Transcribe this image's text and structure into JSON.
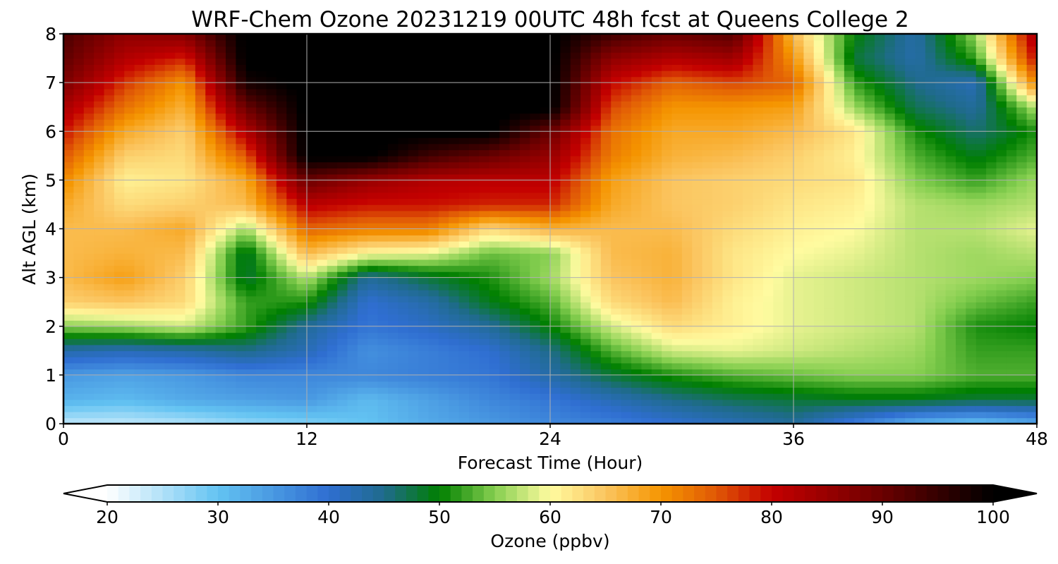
{
  "chart_data": {
    "type": "heatmap",
    "title": "WRF-Chem Ozone  20231219 00UTC 48h fcst at Queens College 2",
    "xlabel": "Forecast Time (Hour)",
    "ylabel": "Alt AGL (km)",
    "xlim": [
      0,
      48
    ],
    "ylim": [
      0,
      8
    ],
    "xticks": [
      0,
      12,
      24,
      36,
      48
    ],
    "yticks": [
      0,
      1,
      2,
      3,
      4,
      5,
      6,
      7,
      8
    ],
    "grid": true,
    "x": [
      0,
      3,
      6,
      9,
      12,
      15,
      18,
      21,
      24,
      27,
      30,
      33,
      36,
      39,
      42,
      45,
      48
    ],
    "y": [
      0,
      0.5,
      1,
      1.5,
      2,
      2.5,
      3,
      3.5,
      4,
      4.5,
      5,
      5.5,
      6,
      6.5,
      7,
      7.5,
      8
    ],
    "z_units": "ppbv",
    "z": [
      [
        24,
        24,
        25,
        27,
        28,
        30,
        33,
        35,
        37,
        38,
        40,
        42,
        44,
        38,
        32,
        30,
        33
      ],
      [
        32,
        31,
        33,
        34,
        35,
        31,
        34,
        37,
        39,
        42,
        45,
        47,
        48,
        49,
        49,
        48,
        48
      ],
      [
        35,
        34,
        35,
        37,
        37,
        37,
        38,
        39,
        43,
        48,
        51,
        53,
        54,
        55,
        55,
        53,
        53
      ],
      [
        43,
        42,
        43,
        45,
        42,
        36,
        38,
        40,
        45,
        53,
        58,
        59,
        58,
        57,
        56,
        52,
        52
      ],
      [
        55,
        56,
        58,
        52,
        44,
        39,
        41,
        44,
        50,
        58,
        63,
        61,
        59,
        58,
        57,
        51,
        50
      ],
      [
        64,
        65,
        63,
        52,
        51,
        40,
        43,
        49,
        53,
        63,
        66,
        61,
        59,
        58,
        57,
        54,
        52
      ],
      [
        66,
        69,
        64,
        48,
        57,
        44,
        48,
        51,
        56,
        65,
        67,
        62,
        59,
        58,
        57,
        56,
        55
      ],
      [
        66,
        67,
        66,
        48,
        66,
        60,
        59,
        54,
        55,
        66,
        67,
        62,
        60,
        59,
        57,
        56,
        57
      ],
      [
        66,
        66,
        68,
        56,
        74,
        72,
        72,
        63,
        67,
        66,
        66,
        63,
        61,
        60,
        57,
        57,
        59
      ],
      [
        68,
        63,
        64,
        66,
        81,
        79,
        79,
        78,
        78,
        68,
        65,
        64,
        62,
        61,
        57,
        56,
        57
      ],
      [
        71,
        61,
        62,
        68,
        90,
        85,
        82,
        81,
        81,
        69,
        65,
        64,
        63,
        62,
        55,
        52,
        56
      ],
      [
        75,
        64,
        63,
        75,
        101,
        101,
        94,
        90,
        85,
        72,
        67,
        66,
        64,
        61,
        53,
        49,
        53
      ],
      [
        79,
        68,
        64,
        82,
        101,
        101,
        101,
        101,
        90,
        73,
        68,
        68,
        66,
        62,
        51,
        46,
        51
      ],
      [
        83,
        73,
        67,
        90,
        101,
        101,
        101,
        101,
        101,
        76,
        70,
        70,
        69,
        56,
        47,
        44,
        57
      ],
      [
        88,
        77,
        70,
        98,
        101,
        101,
        101,
        101,
        101,
        80,
        74,
        76,
        74,
        52,
        45,
        42,
        72
      ],
      [
        91,
        82,
        78,
        101,
        101,
        101,
        101,
        101,
        101,
        86,
        82,
        84,
        70,
        48,
        43,
        52,
        80
      ],
      [
        93,
        86,
        87,
        101,
        101,
        101,
        101,
        101,
        101,
        94,
        90,
        92,
        66,
        50,
        43,
        56,
        84
      ]
    ],
    "colorbar": {
      "label": "Ozone  (ppbv)",
      "min": 20,
      "max": 100,
      "ticks": [
        20,
        30,
        40,
        50,
        60,
        70,
        80,
        90,
        100
      ],
      "extend": "both",
      "orientation": "horizontal",
      "colormap_stops": [
        {
          "value": 20,
          "color": "#ffffff"
        },
        {
          "value": 30,
          "color": "#63c3f2"
        },
        {
          "value": 40,
          "color": "#2f6ed1"
        },
        {
          "value": 45,
          "color": "#1f6b8c"
        },
        {
          "value": 50,
          "color": "#007f00"
        },
        {
          "value": 55,
          "color": "#86cf50"
        },
        {
          "value": 60,
          "color": "#fffba0"
        },
        {
          "value": 65,
          "color": "#fbc560"
        },
        {
          "value": 70,
          "color": "#f59500"
        },
        {
          "value": 75,
          "color": "#e05806"
        },
        {
          "value": 80,
          "color": "#c40000"
        },
        {
          "value": 90,
          "color": "#6a0000"
        },
        {
          "value": 100,
          "color": "#000000"
        }
      ]
    }
  }
}
